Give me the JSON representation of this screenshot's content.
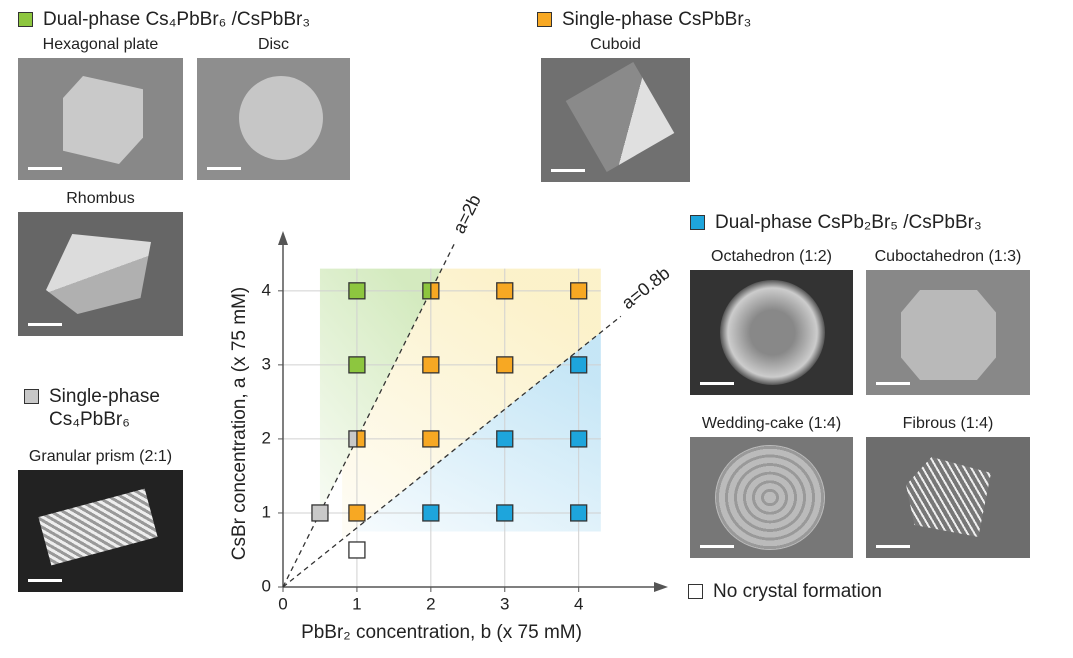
{
  "chart_data": {
    "type": "scatter",
    "xlabel": "PbBr₂ concentration, b (x 75 mM)",
    "ylabel": "CsBr concentration, a (x 75 mM)",
    "xlim": [
      0,
      5.1
    ],
    "ylim": [
      0,
      4.7
    ],
    "xticks": [
      0,
      1,
      2,
      3,
      4
    ],
    "yticks": [
      0,
      1,
      2,
      3,
      4
    ],
    "grid": true,
    "lines": [
      {
        "label": "a=2b",
        "slope": 2
      },
      {
        "label": "a=0.8b",
        "slope": 0.8
      }
    ],
    "series": [
      {
        "name": "Dual-phase Cs₄PbBr₆ /CsPbBr₃",
        "color": "#8dc63f",
        "x": [
          1,
          1,
          2
        ],
        "values": [
          4,
          3,
          4
        ]
      },
      {
        "name": "Single-phase Cs₄PbBr₆",
        "color": "#c8c8c8",
        "x": [
          0.5,
          1
        ],
        "values": [
          1,
          2
        ]
      },
      {
        "name": "Single-phase CsPbBr₃",
        "color": "#f7a823",
        "x": [
          2,
          3,
          4,
          2,
          3,
          1,
          2,
          1
        ],
        "values": [
          4,
          4,
          4,
          3,
          3,
          2,
          2,
          1
        ]
      },
      {
        "name": "Dual-phase CsPb₂Br₅ /CsPbBr₃",
        "color": "#1ea5dc",
        "x": [
          4,
          3,
          4,
          2,
          3,
          4
        ],
        "values": [
          3,
          2,
          2,
          1,
          1,
          1
        ]
      },
      {
        "name": "No crystal formation",
        "color": "#ffffff",
        "x": [
          1
        ],
        "values": [
          0.5
        ]
      }
    ]
  },
  "panels": [
    "Hexagonal plate",
    "Disc",
    "Cuboid",
    "Rhombus",
    "Granular prism (2:1)",
    "Octahedron (1:2)",
    "Cuboctahedron (1:3)",
    "Wedding-cake (1:4)",
    "Fibrous (1:4)"
  ]
}
